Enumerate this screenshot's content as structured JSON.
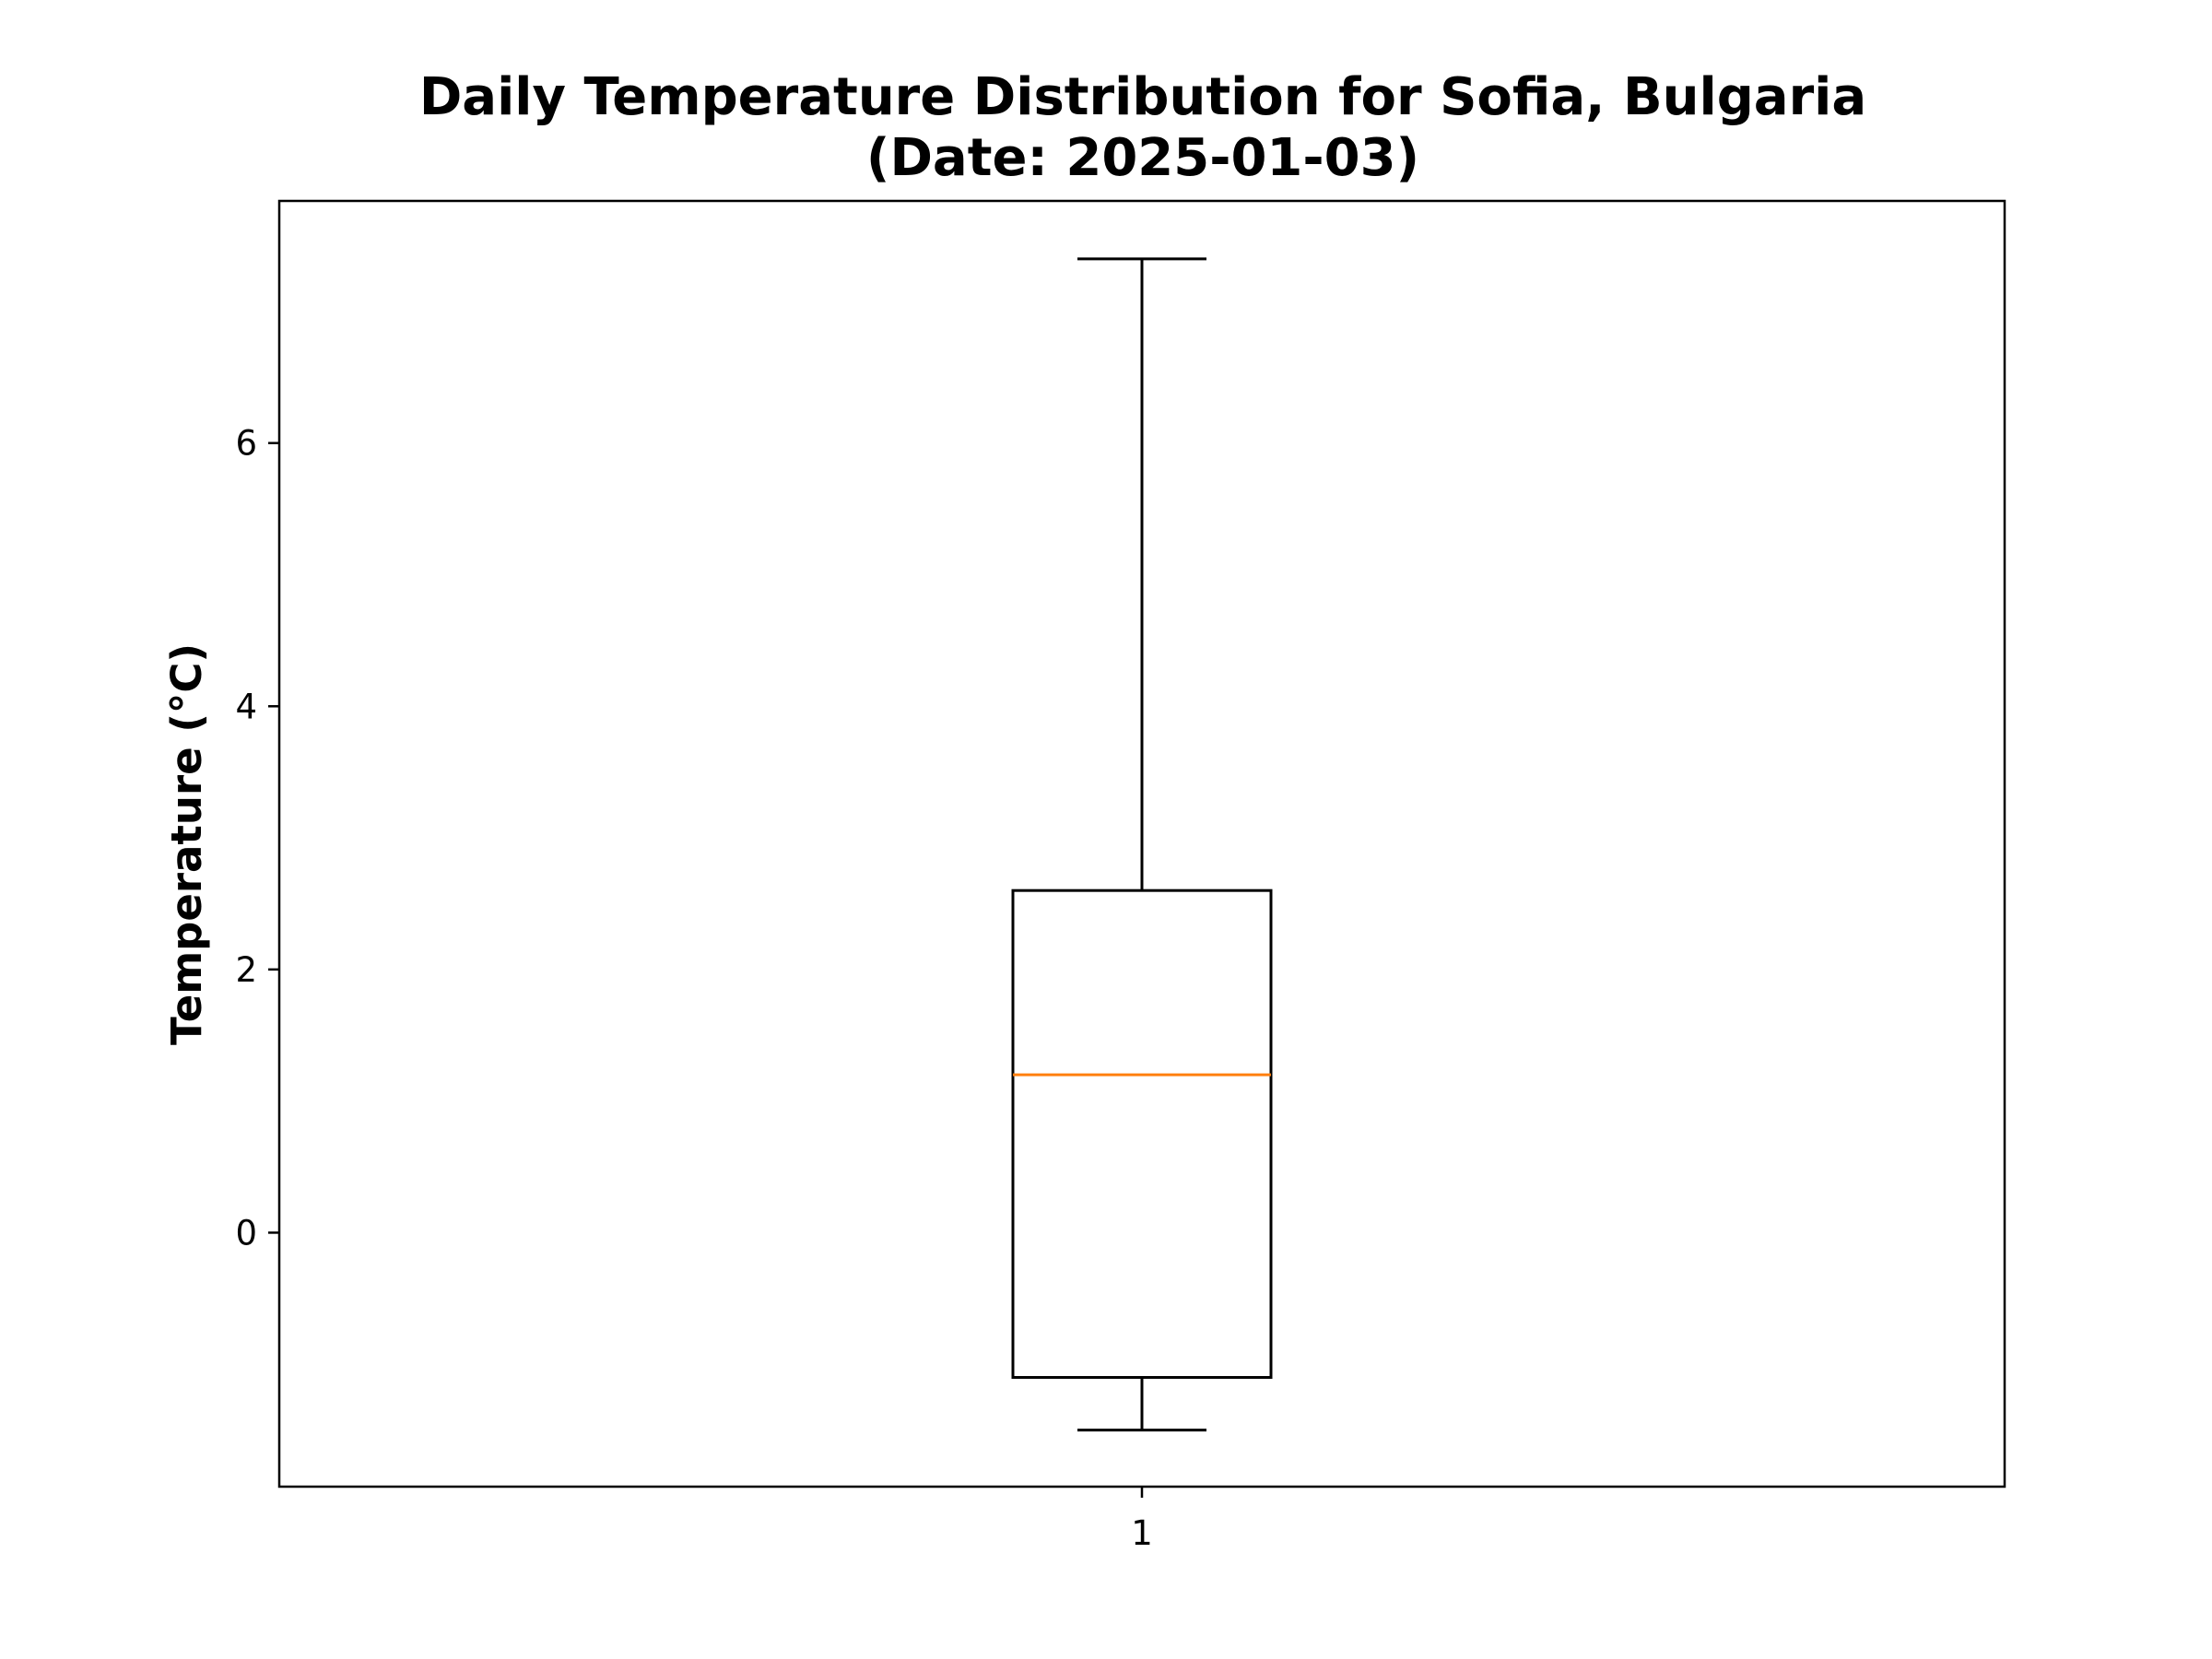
{
  "chart_data": {
    "type": "box",
    "title": "Daily Temperature Distribution for Sofia, Bulgaria",
    "subtitle": "(Date: 2025-01-03)",
    "xlabel": "",
    "ylabel": "Temperature (°C)",
    "ylim": [
      -1.93,
      7.84
    ],
    "y_ticks": [
      0,
      2,
      4,
      6
    ],
    "x_tick_labels": [
      "1"
    ],
    "grid": false,
    "boxes": [
      {
        "label": "1",
        "whisker_low": -1.5,
        "q1": -1.1,
        "median": 1.2,
        "q3": 2.6,
        "whisker_high": 7.4
      }
    ],
    "colors": {
      "box": "#000000",
      "median": "#ff7f0e"
    }
  }
}
